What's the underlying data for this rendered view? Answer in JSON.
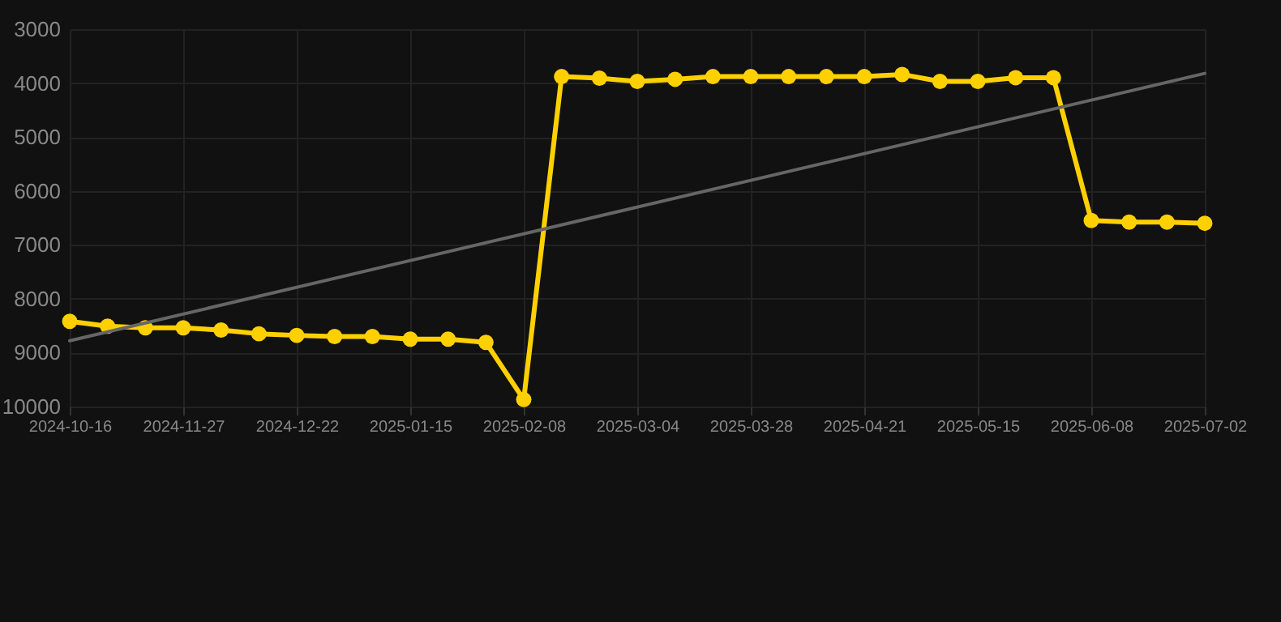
{
  "chart_data": {
    "type": "line",
    "categories": [
      "2024-10-16",
      null,
      null,
      "2024-11-27",
      null,
      null,
      "2024-12-22",
      null,
      null,
      "2025-01-15",
      null,
      null,
      "2025-02-08",
      null,
      null,
      "2025-03-04",
      null,
      null,
      "2025-03-28",
      null,
      null,
      "2025-04-21",
      null,
      null,
      "2025-05-15",
      null,
      null,
      "2025-06-08",
      null,
      null,
      "2025-07-02"
    ],
    "series": [
      {
        "color": "#ffd000",
        "marker": "circle",
        "values": [
          8420,
          8510,
          8540,
          8540,
          8580,
          8650,
          8680,
          8700,
          8700,
          8750,
          8750,
          8810,
          9870,
          3880,
          3910,
          3970,
          3930,
          3880,
          3880,
          3880,
          3880,
          3880,
          3840,
          3970,
          3970,
          3900,
          3900,
          6550,
          6580,
          6580,
          6600
        ]
      },
      {
        "type": "line",
        "color": "#666666",
        "marker": "none",
        "values": [
          8780,
          null,
          null,
          null,
          null,
          null,
          null,
          null,
          null,
          null,
          null,
          null,
          null,
          null,
          null,
          null,
          null,
          null,
          null,
          null,
          null,
          null,
          null,
          null,
          null,
          null,
          null,
          null,
          null,
          null,
          3820
        ]
      }
    ],
    "ylim": [
      10000,
      3000
    ],
    "yticks": [
      3000,
      4000,
      5000,
      6000,
      7000,
      8000,
      9000,
      10000
    ],
    "grid": true
  }
}
